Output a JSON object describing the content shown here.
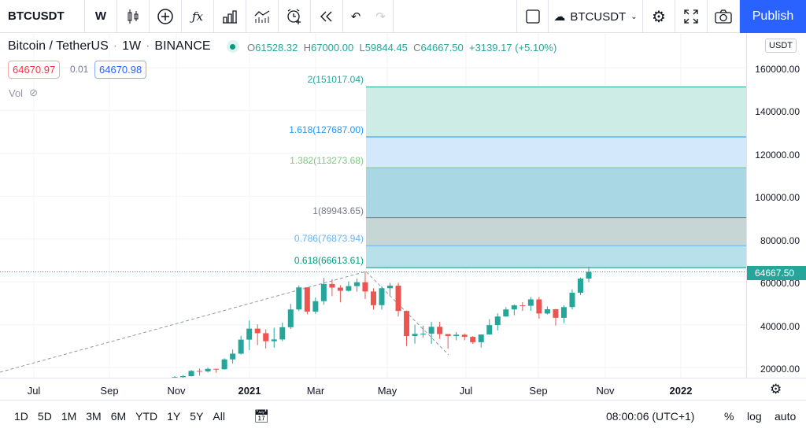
{
  "toolbar": {
    "symbol": "BTCUSDT",
    "interval": "W",
    "compare_symbol": "BTCUSDT",
    "publish": "Publish"
  },
  "legend": {
    "title": "Bitcoin / TetherUS",
    "interval": "1W",
    "exchange": "BINANCE",
    "sep": "·",
    "o_label": "O",
    "o": "61528.32",
    "h_label": "H",
    "h": "67000.00",
    "l_label": "L",
    "l": "59844.45",
    "c_label": "C",
    "c": "64667.50",
    "change": "+3139.17 (+5.10%)",
    "bid": "64670.97",
    "spread": "0.01",
    "ask": "64670.98",
    "vol": "Vol"
  },
  "price_scale": {
    "currency": "USDT",
    "labels": [
      "160000.00",
      "140000.00",
      "120000.00",
      "100000.00",
      "80000.00",
      "60000.00",
      "40000.00",
      "20000.00"
    ],
    "current": "64667.50"
  },
  "time_axis": [
    "Jul",
    "Sep",
    "Nov",
    "2021",
    "Mar",
    "May",
    "Jul",
    "Sep",
    "Nov",
    "2022"
  ],
  "fib": [
    {
      "label": "2(151017.04)",
      "price": 151017.04,
      "color": "#26a69a"
    },
    {
      "label": "1.618(127687.00)",
      "price": 127687,
      "color": "#2196f3"
    },
    {
      "label": "1.382(113273.68)",
      "price": 113273.68,
      "color": "#81c784"
    },
    {
      "label": "1(89943.65)",
      "price": 89943.65,
      "color": "#787b86"
    },
    {
      "label": "0.786(76873.94)",
      "price": 76873.94,
      "color": "#64b5f6"
    },
    {
      "label": "0.618(66613.61)",
      "price": 66613.61,
      "color": "#089981"
    }
  ],
  "bottom": {
    "ranges": [
      "1D",
      "5D",
      "1M",
      "3M",
      "6M",
      "YTD",
      "1Y",
      "5Y",
      "All"
    ],
    "time": "08:00:06 (UTC+1)",
    "percent": "%",
    "log": "log",
    "auto": "auto"
  },
  "colors": {
    "up": "#26a69a",
    "down": "#ef5350",
    "accent": "#2962ff"
  },
  "chart_data": {
    "type": "candlestick",
    "ylim": [
      10000,
      170000
    ],
    "candles": [
      [
        13760,
        15960,
        13520,
        15480
      ],
      [
        15480,
        16480,
        14820,
        15960
      ],
      [
        15960,
        18800,
        15760,
        18410
      ],
      [
        18410,
        19480,
        16200,
        18180
      ],
      [
        18180,
        19920,
        17650,
        19360
      ],
      [
        19360,
        19420,
        17570,
        19170
      ],
      [
        19170,
        24300,
        19000,
        23780
      ],
      [
        23780,
        28400,
        21800,
        26440
      ],
      [
        26440,
        34780,
        26080,
        33000
      ],
      [
        33000,
        41950,
        28130,
        38150
      ],
      [
        38150,
        40100,
        30420,
        36000
      ],
      [
        36000,
        37850,
        28850,
        32260
      ],
      [
        32260,
        38600,
        29240,
        33090
      ],
      [
        33090,
        40950,
        32300,
        38800
      ],
      [
        38800,
        49710,
        37990,
        47100
      ],
      [
        47100,
        58350,
        46300,
        57400
      ],
      [
        57400,
        57500,
        44900,
        46100
      ],
      [
        46100,
        52650,
        45000,
        50960
      ],
      [
        50960,
        61840,
        49300,
        59000
      ],
      [
        59000,
        61180,
        53300,
        57300
      ],
      [
        57300,
        58430,
        50420,
        55800
      ],
      [
        55800,
        60200,
        55400,
        58000
      ],
      [
        58000,
        61500,
        55400,
        59800
      ],
      [
        59800,
        64850,
        52000,
        55500
      ],
      [
        55500,
        57000,
        47000,
        49100
      ],
      [
        49100,
        58000,
        47000,
        57000
      ],
      [
        57000,
        59500,
        53400,
        58200
      ],
      [
        58200,
        59600,
        43800,
        46400
      ],
      [
        46400,
        46600,
        30000,
        34700
      ],
      [
        34700,
        40000,
        31100,
        35700
      ],
      [
        35700,
        39500,
        34000,
        35800
      ],
      [
        35800,
        41300,
        31000,
        39000
      ],
      [
        39000,
        41300,
        33300,
        35600
      ],
      [
        35600,
        35600,
        28800,
        34700
      ],
      [
        34700,
        36600,
        32700,
        35300
      ],
      [
        35300,
        35900,
        32700,
        34300
      ],
      [
        34300,
        34600,
        31000,
        31800
      ],
      [
        31800,
        35400,
        29300,
        35400
      ],
      [
        35400,
        42600,
        35300,
        39800
      ],
      [
        39800,
        45300,
        37300,
        43800
      ],
      [
        43800,
        48150,
        43700,
        47100
      ],
      [
        47100,
        49400,
        44400,
        49000
      ],
      [
        49000,
        50500,
        46400,
        48800
      ],
      [
        48800,
        52900,
        46500,
        51800
      ],
      [
        51800,
        52900,
        42800,
        45200
      ],
      [
        45200,
        48500,
        44700,
        47200
      ],
      [
        47200,
        47400,
        39600,
        43200
      ],
      [
        43200,
        49000,
        40700,
        48200
      ],
      [
        48200,
        56500,
        47100,
        54900
      ],
      [
        54900,
        62000,
        53800,
        61500
      ],
      [
        61500,
        67000,
        59844,
        64667
      ]
    ]
  }
}
